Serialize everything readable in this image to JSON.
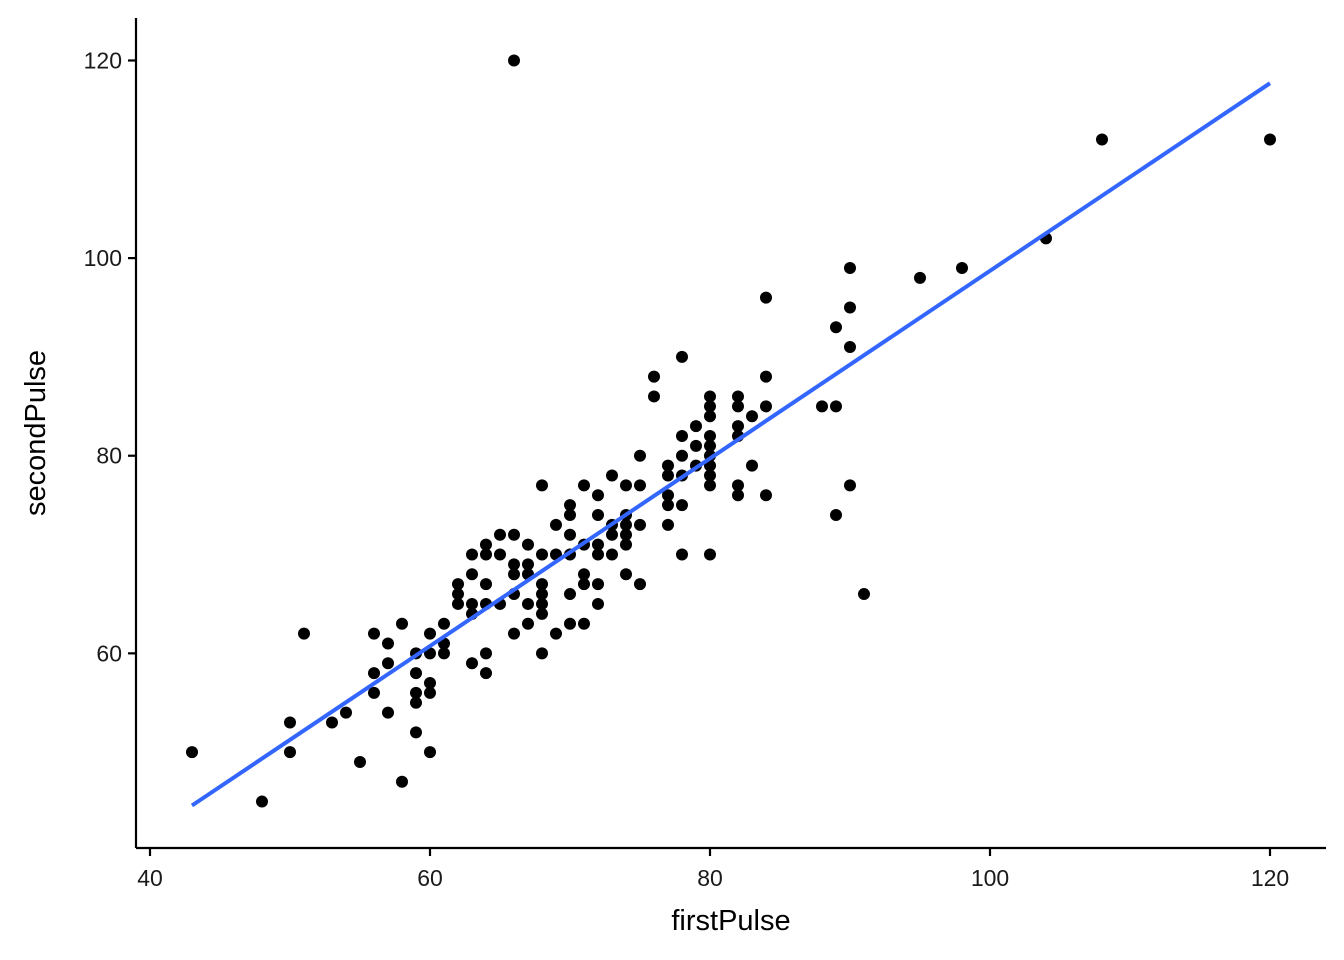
{
  "chart_data": {
    "type": "scatter",
    "xlabel": "firstPulse",
    "ylabel": "secondPulse",
    "xlim": [
      39,
      124
    ],
    "ylim": [
      40.3,
      124.3
    ],
    "x_ticks": [
      40,
      60,
      80,
      100,
      120
    ],
    "y_ticks": [
      60,
      80,
      100,
      120
    ],
    "grid": false,
    "legend": "none",
    "colors": {
      "points": "#000000",
      "fit_line": "#3366ff",
      "axis": "#000000"
    },
    "series": [
      {
        "points": [
          [
            66,
            120
          ],
          [
            108,
            112
          ],
          [
            120,
            112
          ],
          [
            104,
            102
          ],
          [
            90,
            99
          ],
          [
            98,
            99
          ],
          [
            95,
            98
          ],
          [
            84,
            96
          ],
          [
            90,
            95
          ],
          [
            89,
            93
          ],
          [
            90,
            91
          ],
          [
            78,
            90
          ],
          [
            76,
            88
          ],
          [
            84,
            88
          ],
          [
            76,
            86
          ],
          [
            80,
            86
          ],
          [
            82,
            86
          ],
          [
            80,
            85
          ],
          [
            82,
            85
          ],
          [
            84,
            85
          ],
          [
            88,
            85
          ],
          [
            89,
            85
          ],
          [
            80,
            84
          ],
          [
            83,
            84
          ],
          [
            79,
            83
          ],
          [
            82,
            83
          ],
          [
            78,
            82
          ],
          [
            80,
            82
          ],
          [
            82,
            82
          ],
          [
            79,
            81
          ],
          [
            80,
            81
          ],
          [
            78,
            80
          ],
          [
            80,
            80
          ],
          [
            75,
            80
          ],
          [
            77,
            79
          ],
          [
            79,
            79
          ],
          [
            80,
            79
          ],
          [
            83,
            79
          ],
          [
            73,
            78
          ],
          [
            77,
            78
          ],
          [
            78,
            78
          ],
          [
            80,
            78
          ],
          [
            68,
            77
          ],
          [
            71,
            77
          ],
          [
            74,
            77
          ],
          [
            75,
            77
          ],
          [
            80,
            77
          ],
          [
            82,
            77
          ],
          [
            90,
            77
          ],
          [
            72,
            76
          ],
          [
            77,
            76
          ],
          [
            82,
            76
          ],
          [
            84,
            76
          ],
          [
            70,
            75
          ],
          [
            77,
            75
          ],
          [
            78,
            75
          ],
          [
            70,
            74
          ],
          [
            72,
            74
          ],
          [
            74,
            74
          ],
          [
            89,
            74
          ],
          [
            69,
            73
          ],
          [
            73,
            73
          ],
          [
            74,
            73
          ],
          [
            75,
            73
          ],
          [
            77,
            73
          ],
          [
            66,
            72
          ],
          [
            70,
            72
          ],
          [
            73,
            72
          ],
          [
            74,
            72
          ],
          [
            65,
            72
          ],
          [
            64,
            71
          ],
          [
            67,
            71
          ],
          [
            71,
            71
          ],
          [
            72,
            71
          ],
          [
            74,
            71
          ],
          [
            63,
            70
          ],
          [
            64,
            70
          ],
          [
            65,
            70
          ],
          [
            68,
            70
          ],
          [
            69,
            70
          ],
          [
            70,
            70
          ],
          [
            72,
            70
          ],
          [
            73,
            70
          ],
          [
            78,
            70
          ],
          [
            80,
            70
          ],
          [
            66,
            69
          ],
          [
            67,
            69
          ],
          [
            63,
            68
          ],
          [
            66,
            68
          ],
          [
            67,
            68
          ],
          [
            71,
            68
          ],
          [
            74,
            68
          ],
          [
            62,
            67
          ],
          [
            64,
            67
          ],
          [
            68,
            67
          ],
          [
            71,
            67
          ],
          [
            72,
            67
          ],
          [
            75,
            67
          ],
          [
            62,
            66
          ],
          [
            66,
            66
          ],
          [
            68,
            66
          ],
          [
            70,
            66
          ],
          [
            91,
            66
          ],
          [
            62,
            65
          ],
          [
            63,
            65
          ],
          [
            64,
            65
          ],
          [
            65,
            65
          ],
          [
            67,
            65
          ],
          [
            68,
            65
          ],
          [
            72,
            65
          ],
          [
            63,
            64
          ],
          [
            68,
            64
          ],
          [
            61,
            63
          ],
          [
            67,
            63
          ],
          [
            70,
            63
          ],
          [
            71,
            63
          ],
          [
            58,
            63
          ],
          [
            51,
            62
          ],
          [
            56,
            62
          ],
          [
            60,
            62
          ],
          [
            66,
            62
          ],
          [
            69,
            62
          ],
          [
            61,
            61
          ],
          [
            57,
            61
          ],
          [
            59,
            60
          ],
          [
            60,
            60
          ],
          [
            61,
            60
          ],
          [
            64,
            60
          ],
          [
            68,
            60
          ],
          [
            57,
            59
          ],
          [
            63,
            59
          ],
          [
            56,
            58
          ],
          [
            59,
            58
          ],
          [
            64,
            58
          ],
          [
            60,
            57
          ],
          [
            56,
            56
          ],
          [
            59,
            56
          ],
          [
            60,
            56
          ],
          [
            59,
            55
          ],
          [
            54,
            54
          ],
          [
            57,
            54
          ],
          [
            50,
            53
          ],
          [
            53,
            53
          ],
          [
            59,
            52
          ],
          [
            43,
            50
          ],
          [
            50,
            50
          ],
          [
            60,
            50
          ],
          [
            55,
            49
          ],
          [
            58,
            47
          ],
          [
            48,
            45
          ]
        ]
      }
    ],
    "fit_line": {
      "x": [
        43,
        120
      ],
      "y": [
        44.6,
        117.7
      ]
    }
  }
}
